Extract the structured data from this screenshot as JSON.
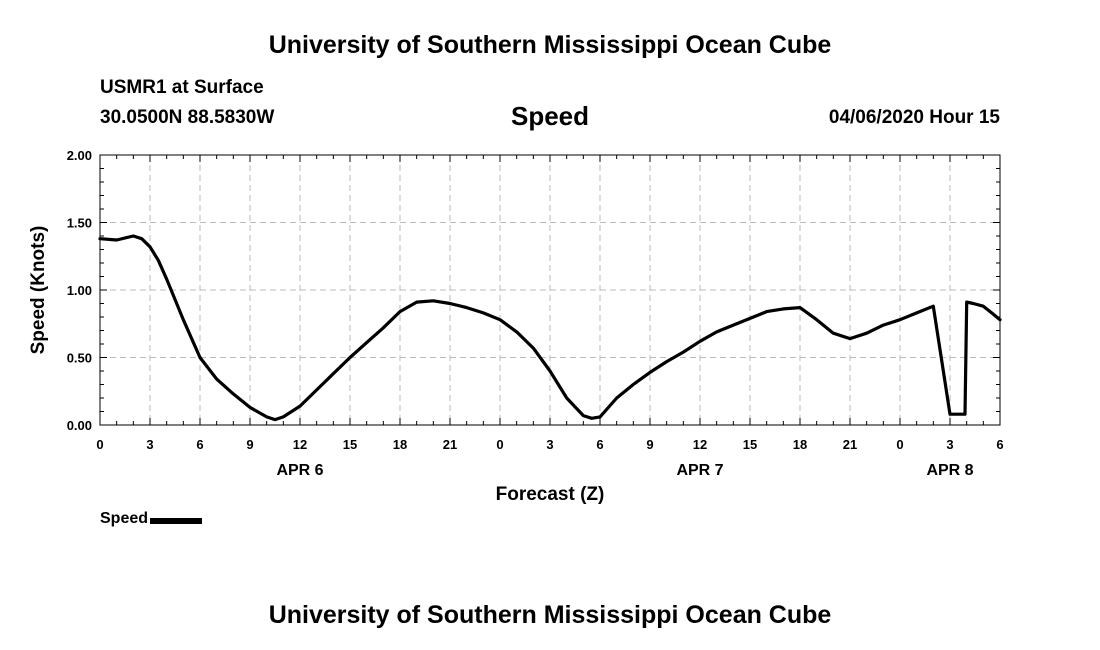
{
  "header": {
    "title": "University of Southern Mississippi Ocean Cube",
    "station": "USMR1 at Surface",
    "coordinates": "30.0500N 88.5830W",
    "datetime": "04/06/2020 Hour 15"
  },
  "footer": {
    "title": "University of Southern Mississippi Ocean Cube"
  },
  "chart_data": {
    "type": "line",
    "title": "Speed",
    "xlabel": "Forecast (Z)",
    "ylabel": "Speed (Knots)",
    "xlim": [
      0,
      54
    ],
    "ylim": [
      0,
      2
    ],
    "y_ticks": [
      "0.00",
      "0.50",
      "1.00",
      "1.50",
      "2.00"
    ],
    "x_ticks": [
      "0",
      "3",
      "6",
      "9",
      "12",
      "15",
      "18",
      "21",
      "0",
      "3",
      "6",
      "9",
      "12",
      "15",
      "18",
      "21",
      "0",
      "3",
      "6"
    ],
    "day_labels": [
      {
        "label": "APR 6",
        "hour": 12
      },
      {
        "label": "APR 7",
        "hour": 36
      },
      {
        "label": "APR 8",
        "hour": 51
      }
    ],
    "grid": true,
    "legend": {
      "position": "bottom-left",
      "entries": [
        "Speed"
      ]
    },
    "series": [
      {
        "name": "Speed",
        "color": "#000000",
        "x": [
          0,
          1,
          2,
          2.5,
          3,
          3.5,
          4,
          5,
          6,
          7,
          8,
          9,
          10,
          10.5,
          11,
          12,
          13,
          14,
          15,
          16,
          17,
          18,
          19,
          20,
          21,
          22,
          23,
          24,
          25,
          26,
          27,
          28,
          29,
          29.5,
          30,
          31,
          32,
          33,
          34,
          35,
          36,
          37,
          38,
          39,
          40,
          41,
          42,
          43,
          44,
          45,
          46,
          47,
          48,
          49,
          50,
          51,
          51.9,
          52,
          52.4,
          53,
          53.5,
          54
        ],
        "y": [
          1.38,
          1.37,
          1.4,
          1.38,
          1.32,
          1.22,
          1.08,
          0.78,
          0.5,
          0.34,
          0.23,
          0.13,
          0.06,
          0.04,
          0.06,
          0.14,
          0.26,
          0.38,
          0.5,
          0.61,
          0.72,
          0.84,
          0.91,
          0.92,
          0.9,
          0.87,
          0.83,
          0.78,
          0.69,
          0.57,
          0.4,
          0.2,
          0.07,
          0.05,
          0.06,
          0.2,
          0.3,
          0.39,
          0.47,
          0.54,
          0.62,
          0.69,
          0.74,
          0.79,
          0.84,
          0.86,
          0.87,
          0.78,
          0.68,
          0.64,
          0.68,
          0.74,
          0.78,
          0.83,
          0.88,
          0.08,
          0.08,
          0.91,
          0.9,
          0.88,
          0.83,
          0.78
        ]
      }
    ]
  }
}
